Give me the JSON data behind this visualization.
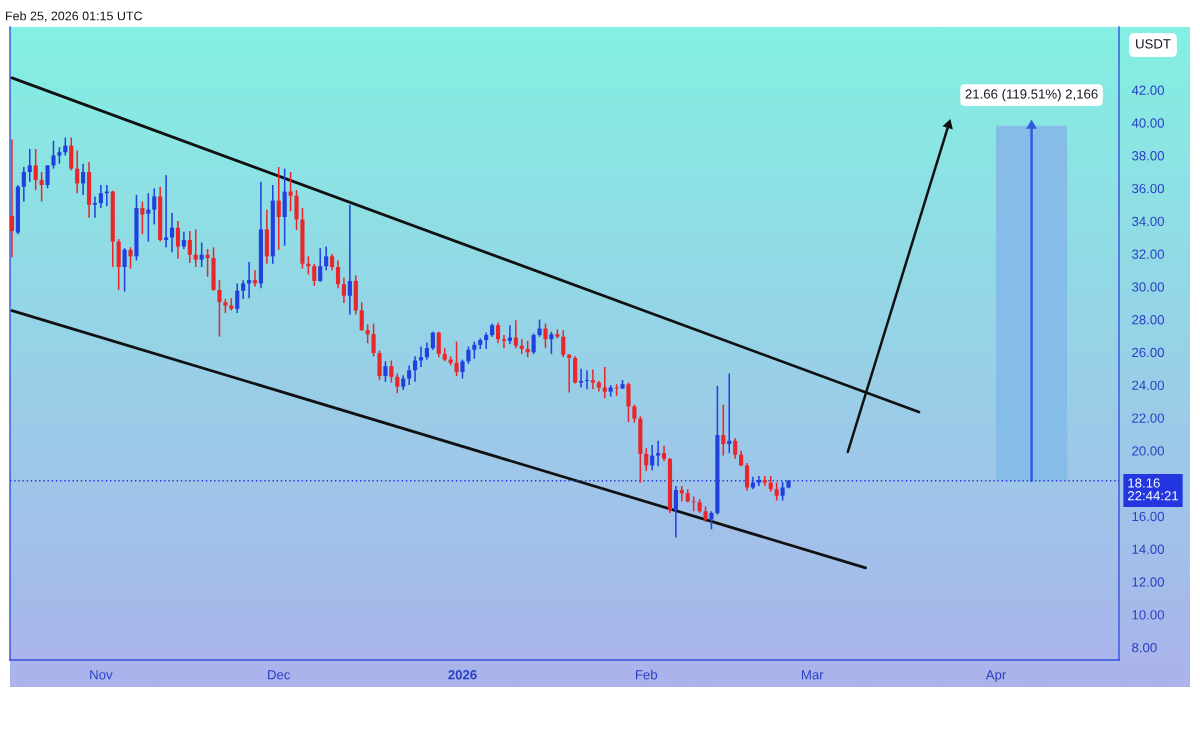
{
  "chart_data": {
    "type": "candlestick",
    "annotations": [
      "Feb 25, 2026 01:15 UTC"
    ],
    "ylabel": "USDT",
    "x": [
      "2025-10-17",
      "2025-10-18",
      "2025-10-19",
      "2025-10-20",
      "2025-10-21",
      "2025-10-22",
      "2025-10-23",
      "2025-10-24",
      "2025-10-25",
      "2025-10-26",
      "2025-10-27",
      "2025-10-28",
      "2025-10-29",
      "2025-10-30",
      "2025-10-31",
      "2025-11-01",
      "2025-11-02",
      "2025-11-03",
      "2025-11-04",
      "2025-11-05",
      "2025-11-06",
      "2025-11-07",
      "2025-11-08",
      "2025-11-09",
      "2025-11-10",
      "2025-11-11",
      "2025-11-12",
      "2025-11-13",
      "2025-11-14",
      "2025-11-15",
      "2025-11-16",
      "2025-11-17",
      "2025-11-18",
      "2025-11-19",
      "2025-11-20",
      "2025-11-21",
      "2025-11-22",
      "2025-11-23",
      "2025-11-24",
      "2025-11-25",
      "2025-11-26",
      "2025-11-27",
      "2025-11-28",
      "2025-11-29",
      "2025-11-30",
      "2025-12-01",
      "2025-12-02",
      "2025-12-03",
      "2025-12-04",
      "2025-12-05",
      "2025-12-06",
      "2025-12-07",
      "2025-12-08",
      "2025-12-09",
      "2025-12-10",
      "2025-12-11",
      "2025-12-12",
      "2025-12-13",
      "2025-12-14",
      "2025-12-15",
      "2025-12-16",
      "2025-12-17",
      "2025-12-18",
      "2025-12-19",
      "2025-12-20",
      "2025-12-21",
      "2025-12-22",
      "2025-12-23",
      "2025-12-24",
      "2025-12-25",
      "2025-12-26",
      "2025-12-27",
      "2025-12-28",
      "2025-12-29",
      "2025-12-30",
      "2025-12-31",
      "2026-01-01",
      "2026-01-02",
      "2026-01-03",
      "2026-01-04",
      "2026-01-05",
      "2026-01-06",
      "2026-01-07",
      "2026-01-08",
      "2026-01-09",
      "2026-01-10",
      "2026-01-11",
      "2026-01-12",
      "2026-01-13",
      "2026-01-14",
      "2026-01-15",
      "2026-01-16",
      "2026-01-17",
      "2026-01-18",
      "2026-01-19",
      "2026-01-20",
      "2026-01-21",
      "2026-01-22",
      "2026-01-23",
      "2026-01-24",
      "2026-01-25",
      "2026-01-26",
      "2026-01-27",
      "2026-01-28",
      "2026-01-29",
      "2026-01-30",
      "2026-01-31",
      "2026-02-01",
      "2026-02-02",
      "2026-02-03",
      "2026-02-04",
      "2026-02-05",
      "2026-02-06",
      "2026-02-07",
      "2026-02-08",
      "2026-02-09",
      "2026-02-10",
      "2026-02-11",
      "2026-02-12",
      "2026-02-13",
      "2026-02-14",
      "2026-02-15",
      "2026-02-16",
      "2026-02-17",
      "2026-02-18",
      "2026-02-19",
      "2026-02-20",
      "2026-02-21",
      "2026-02-22",
      "2026-02-23",
      "2026-02-24",
      "2026-02-25"
    ],
    "ohlc": [
      [
        34.3,
        39.0,
        31.8,
        33.4
      ],
      [
        33.3,
        36.2,
        33.2,
        36.1
      ],
      [
        36.1,
        37.3,
        35.2,
        37.0
      ],
      [
        37.0,
        38.4,
        36.4,
        37.4
      ],
      [
        37.4,
        38.4,
        35.9,
        36.5
      ],
      [
        36.5,
        37.0,
        35.2,
        36.2
      ],
      [
        36.2,
        37.4,
        36.0,
        37.4
      ],
      [
        37.4,
        38.9,
        37.2,
        38.0
      ],
      [
        38.0,
        38.5,
        37.5,
        38.2
      ],
      [
        38.2,
        39.1,
        38.0,
        38.6
      ],
      [
        38.6,
        39.1,
        37.1,
        37.2
      ],
      [
        37.2,
        38.3,
        35.7,
        36.3
      ],
      [
        36.3,
        37.5,
        35.6,
        37.0
      ],
      [
        37.0,
        37.6,
        34.2,
        35.0
      ],
      [
        35.0,
        35.5,
        34.2,
        35.1
      ],
      [
        35.1,
        36.2,
        34.8,
        35.7
      ],
      [
        35.7,
        36.2,
        34.9,
        35.8
      ],
      [
        35.8,
        35.85,
        31.2,
        32.75
      ],
      [
        32.75,
        32.9,
        29.8,
        31.2
      ],
      [
        31.2,
        32.35,
        29.7,
        32.25
      ],
      [
        32.25,
        32.4,
        31.1,
        31.85
      ],
      [
        31.85,
        35.6,
        31.6,
        34.8
      ],
      [
        34.8,
        35.2,
        33.2,
        34.4
      ],
      [
        34.45,
        35.7,
        32.75,
        34.7
      ],
      [
        34.7,
        36.0,
        33.8,
        35.5
      ],
      [
        35.5,
        36.1,
        32.75,
        32.85
      ],
      [
        32.85,
        36.8,
        32.4,
        33.0
      ],
      [
        33.0,
        34.5,
        32.1,
        33.6
      ],
      [
        33.6,
        34.0,
        31.7,
        32.45
      ],
      [
        32.45,
        33.35,
        32.3,
        32.85
      ],
      [
        32.85,
        33.4,
        31.45,
        31.95
      ],
      [
        31.95,
        33.5,
        31.2,
        31.65
      ],
      [
        31.65,
        32.7,
        31.2,
        31.95
      ],
      [
        31.95,
        32.3,
        30.6,
        31.75
      ],
      [
        31.75,
        32.4,
        29.75,
        29.8
      ],
      [
        29.8,
        30.4,
        26.95,
        29.05
      ],
      [
        29.05,
        29.25,
        28.4,
        28.85
      ],
      [
        28.85,
        29.3,
        28.55,
        28.65
      ],
      [
        28.65,
        30.2,
        28.4,
        29.75
      ],
      [
        29.75,
        30.4,
        29.25,
        30.2
      ],
      [
        30.2,
        31.5,
        29.3,
        30.4
      ],
      [
        30.4,
        31.0,
        30.0,
        30.2
      ],
      [
        30.2,
        36.4,
        29.9,
        33.5
      ],
      [
        33.5,
        34.7,
        31.4,
        31.85
      ],
      [
        31.85,
        36.2,
        31.4,
        35.25
      ],
      [
        35.25,
        37.3,
        32.25,
        34.25
      ],
      [
        34.25,
        37.2,
        32.5,
        35.8
      ],
      [
        35.8,
        37.0,
        34.6,
        35.55
      ],
      [
        35.55,
        35.9,
        33.45,
        34.1
      ],
      [
        34.1,
        34.8,
        31.1,
        31.4
      ],
      [
        31.4,
        31.85,
        30.75,
        31.25
      ],
      [
        31.25,
        31.4,
        30.05,
        30.35
      ],
      [
        30.35,
        32.35,
        30.3,
        31.25
      ],
      [
        31.25,
        32.45,
        31.0,
        31.85
      ],
      [
        31.85,
        32.0,
        31.0,
        31.2
      ],
      [
        31.2,
        31.6,
        29.9,
        30.15
      ],
      [
        30.15,
        30.55,
        29.0,
        29.45
      ],
      [
        29.45,
        35.0,
        28.3,
        30.35
      ],
      [
        30.35,
        30.7,
        28.3,
        28.55
      ],
      [
        28.55,
        29.05,
        27.3,
        27.35
      ],
      [
        27.35,
        27.7,
        26.55,
        27.1
      ],
      [
        27.1,
        27.75,
        25.75,
        25.95
      ],
      [
        25.95,
        26.1,
        24.3,
        24.55
      ],
      [
        24.55,
        25.45,
        24.2,
        25.15
      ],
      [
        25.15,
        25.5,
        24.15,
        24.5
      ],
      [
        24.5,
        24.7,
        23.5,
        23.9
      ],
      [
        23.9,
        24.6,
        23.7,
        24.4
      ],
      [
        24.4,
        25.2,
        24.0,
        24.9
      ],
      [
        24.9,
        25.75,
        24.2,
        25.5
      ],
      [
        25.5,
        26.35,
        25.1,
        25.7
      ],
      [
        25.7,
        26.6,
        25.55,
        26.25
      ],
      [
        26.25,
        27.25,
        26.15,
        27.2
      ],
      [
        27.2,
        27.25,
        25.7,
        25.9
      ],
      [
        25.9,
        26.25,
        25.45,
        25.55
      ],
      [
        25.55,
        25.75,
        25.2,
        25.35
      ],
      [
        25.35,
        26.65,
        24.55,
        24.8
      ],
      [
        24.8,
        25.55,
        24.4,
        25.45
      ],
      [
        25.45,
        26.35,
        25.3,
        26.15
      ],
      [
        26.15,
        26.65,
        25.6,
        26.45
      ],
      [
        26.45,
        26.85,
        26.2,
        26.75
      ],
      [
        26.75,
        27.2,
        26.2,
        27.05
      ],
      [
        27.05,
        27.75,
        26.95,
        27.65
      ],
      [
        27.65,
        27.8,
        26.55,
        26.8
      ],
      [
        26.8,
        27.05,
        26.25,
        26.7
      ],
      [
        26.7,
        27.65,
        26.5,
        26.9
      ],
      [
        26.9,
        27.95,
        26.25,
        26.4
      ],
      [
        26.4,
        26.8,
        25.9,
        26.2
      ],
      [
        26.2,
        26.7,
        25.7,
        26.0
      ],
      [
        26.0,
        27.15,
        25.9,
        27.05
      ],
      [
        27.05,
        28.0,
        26.95,
        27.45
      ],
      [
        27.45,
        27.75,
        26.25,
        26.8
      ],
      [
        26.8,
        27.25,
        25.9,
        27.1
      ],
      [
        27.1,
        27.4,
        26.85,
        26.95
      ],
      [
        26.95,
        27.35,
        25.7,
        25.85
      ],
      [
        25.85,
        25.9,
        23.55,
        25.65
      ],
      [
        25.65,
        25.75,
        24.1,
        24.15
      ],
      [
        24.15,
        25.0,
        23.85,
        24.25
      ],
      [
        24.25,
        24.9,
        23.75,
        24.3
      ],
      [
        24.3,
        24.95,
        23.75,
        24.15
      ],
      [
        24.15,
        24.25,
        23.6,
        23.85
      ],
      [
        23.85,
        25.1,
        23.2,
        23.6
      ],
      [
        23.6,
        24.0,
        23.3,
        23.85
      ],
      [
        23.85,
        24.05,
        23.35,
        23.8
      ],
      [
        23.8,
        24.3,
        23.75,
        24.05
      ],
      [
        24.05,
        24.15,
        21.75,
        22.7
      ],
      [
        22.7,
        22.8,
        21.7,
        21.95
      ],
      [
        21.95,
        22.1,
        18.05,
        19.8
      ],
      [
        19.8,
        20.15,
        18.75,
        19.1
      ],
      [
        19.1,
        20.35,
        18.8,
        19.7
      ],
      [
        19.7,
        20.6,
        19.05,
        19.85
      ],
      [
        19.85,
        20.3,
        19.35,
        19.5
      ],
      [
        19.5,
        19.55,
        16.2,
        16.35
      ],
      [
        16.35,
        17.85,
        14.7,
        17.6
      ],
      [
        17.6,
        17.85,
        16.9,
        17.4
      ],
      [
        17.4,
        17.65,
        16.85,
        16.9
      ],
      [
        16.9,
        17.2,
        16.3,
        16.85
      ],
      [
        16.85,
        17.05,
        16.2,
        16.3
      ],
      [
        16.3,
        16.6,
        15.65,
        15.8
      ],
      [
        15.8,
        16.3,
        15.2,
        16.2
      ],
      [
        16.2,
        23.95,
        16.1,
        20.95
      ],
      [
        20.95,
        22.8,
        19.7,
        20.4
      ],
      [
        20.4,
        24.7,
        19.85,
        20.6
      ],
      [
        20.6,
        20.75,
        19.5,
        19.75
      ],
      [
        19.75,
        20.0,
        19.05,
        19.1
      ],
      [
        19.1,
        19.25,
        17.55,
        17.75
      ],
      [
        17.75,
        18.4,
        17.65,
        18.05
      ],
      [
        18.05,
        18.45,
        17.85,
        18.2
      ],
      [
        18.2,
        18.45,
        17.85,
        18.05
      ],
      [
        18.05,
        18.45,
        17.5,
        17.65
      ],
      [
        17.65,
        18.05,
        16.95,
        17.25
      ],
      [
        17.25,
        18.1,
        16.95,
        17.75
      ],
      [
        17.75,
        18.2,
        17.7,
        18.16
      ]
    ],
    "colors": [
      "#e8262c",
      "#2040e0",
      "#2040e0",
      "#2040e0",
      "#e8262c",
      "#e8262c",
      "#2040e0",
      "#2040e0",
      "#2040e0",
      "#2040e0",
      "#e8262c",
      "#e8262c",
      "#2040e0",
      "#e8262c",
      "#2040e0",
      "#2040e0",
      "#2040e0",
      "#e8262c",
      "#e8262c",
      "#2040e0",
      "#e8262c",
      "#2040e0",
      "#e8262c",
      "#2040e0",
      "#2040e0",
      "#e8262c",
      "#2040e0",
      "#2040e0",
      "#e8262c",
      "#2040e0",
      "#e8262c",
      "#e8262c",
      "#2040e0",
      "#e8262c",
      "#e8262c",
      "#e8262c",
      "#e8262c",
      "#e8262c",
      "#2040e0",
      "#2040e0",
      "#2040e0",
      "#e8262c",
      "#2040e0",
      "#e8262c",
      "#2040e0",
      "#e8262c",
      "#2040e0",
      "#e8262c",
      "#e8262c",
      "#e8262c",
      "#e8262c",
      "#e8262c",
      "#2040e0",
      "#2040e0",
      "#e8262c",
      "#e8262c",
      "#e8262c",
      "#2040e0",
      "#e8262c",
      "#e8262c",
      "#e8262c",
      "#e8262c",
      "#e8262c",
      "#2040e0",
      "#e8262c",
      "#e8262c",
      "#2040e0",
      "#2040e0",
      "#2040e0",
      "#2040e0",
      "#2040e0",
      "#2040e0",
      "#e8262c",
      "#e8262c",
      "#e8262c",
      "#e8262c",
      "#2040e0",
      "#2040e0",
      "#2040e0",
      "#2040e0",
      "#2040e0",
      "#2040e0",
      "#e8262c",
      "#e8262c",
      "#2040e0",
      "#e8262c",
      "#e8262c",
      "#e8262c",
      "#2040e0",
      "#2040e0",
      "#e8262c",
      "#2040e0",
      "#e8262c",
      "#e8262c",
      "#e8262c",
      "#e8262c",
      "#2040e0",
      "#2040e0",
      "#e8262c",
      "#e8262c",
      "#e8262c",
      "#2040e0",
      "#e8262c",
      "#2040e0",
      "#e8262c",
      "#e8262c",
      "#e8262c",
      "#e8262c",
      "#2040e0",
      "#2040e0",
      "#e8262c",
      "#e8262c",
      "#2040e0",
      "#e8262c",
      "#e8262c",
      "#e8262c",
      "#e8262c",
      "#e8262c",
      "#2040e0",
      "#2040e0",
      "#e8262c",
      "#2040e0",
      "#e8262c",
      "#e8262c",
      "#e8262c",
      "#2040e0",
      "#2040e0",
      "#e8262c",
      "#e8262c",
      "#e8262c",
      "#2040e0",
      "#2040e0"
    ],
    "series": [
      {
        "type": "line",
        "x": [
          "2025-10-17",
          "2026-03-19"
        ],
        "values": [
          42.74,
          22.36
        ],
        "color": "#111111"
      },
      {
        "type": "line",
        "x": [
          "2025-10-17",
          "2026-03-10"
        ],
        "values": [
          28.54,
          12.85
        ],
        "color": "#111111"
      },
      {
        "type": "line",
        "x": [
          "2026-03-07",
          "2026-03-24"
        ],
        "values": [
          19.92,
          39.87
        ],
        "color": "#111111",
        "marker": "triangle"
      },
      {
        "type": "bar",
        "x": [
          "2026-04-07"
        ],
        "base": [
          18.16
        ],
        "values": [
          21.66
        ],
        "color": "#86bde8",
        "value_labels": [
          "21.66 (119.51%) 2,166"
        ]
      },
      {
        "type": "line",
        "x": [
          "2026-04-07",
          "2026-04-07"
        ],
        "values": [
          18.16,
          39.82
        ],
        "color": "#2f5be0",
        "marker": "triangle"
      }
    ],
    "ref_lines": [
      {
        "axis": "y",
        "value": 18.16,
        "label": "18.16\n22:44:21",
        "color": "#2436e0",
        "line_style": "dotted"
      }
    ],
    "xlim": [
      "2025-10-16T16:00",
      "2026-04-21T18:00"
    ],
    "xticks": [
      {
        "value": "2025-11-01",
        "label": "Nov"
      },
      {
        "value": "2025-12-01",
        "label": "Dec"
      },
      {
        "value": "2026-01-01",
        "label": "2026"
      },
      {
        "value": "2026-02-01",
        "label": "Feb"
      },
      {
        "value": "2026-03-01",
        "label": "Mar"
      },
      {
        "value": "2026-04-01",
        "label": "Apr"
      }
    ],
    "ylim": [
      7.23,
      45.84
    ],
    "yticks": [
      {
        "value": 8,
        "label": "8.00"
      },
      {
        "value": 10,
        "label": "10.00"
      },
      {
        "value": 12,
        "label": "12.00"
      },
      {
        "value": 14,
        "label": "14.00"
      },
      {
        "value": 16,
        "label": "16.00"
      },
      {
        "value": 20,
        "label": "20.00"
      },
      {
        "value": 22,
        "label": "22.00"
      },
      {
        "value": 24,
        "label": "24.00"
      },
      {
        "value": 26,
        "label": "26.00"
      },
      {
        "value": 28,
        "label": "28.00"
      },
      {
        "value": 30,
        "label": "30.00"
      },
      {
        "value": 32,
        "label": "32.00"
      },
      {
        "value": 34,
        "label": "34.00"
      },
      {
        "value": 36,
        "label": "36.00"
      },
      {
        "value": 38,
        "label": "38.00"
      },
      {
        "value": 40,
        "label": "40.00"
      },
      {
        "value": 42,
        "label": "42.00"
      }
    ]
  }
}
